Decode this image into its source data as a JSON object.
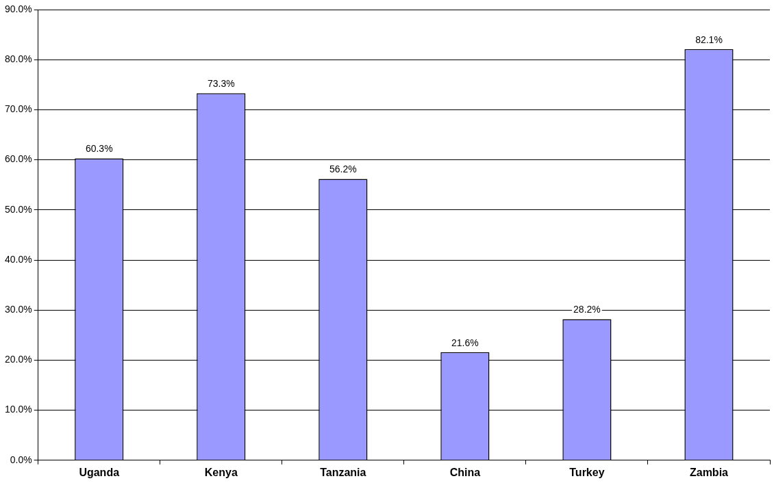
{
  "chart_data": {
    "type": "bar",
    "categories": [
      "Uganda",
      "Kenya",
      "Tanzania",
      "China",
      "Turkey",
      "Zambia"
    ],
    "values": [
      60.3,
      73.3,
      56.2,
      21.6,
      28.2,
      82.1
    ],
    "value_labels": [
      "60.3%",
      "73.3%",
      "56.2%",
      "21.6%",
      "28.2%",
      "82.1%"
    ],
    "color": "#9999ff",
    "ylim": [
      0,
      90
    ],
    "yticks": [
      {
        "value": 0,
        "label": "0.0%"
      },
      {
        "value": 10,
        "label": "10.0%"
      },
      {
        "value": 20,
        "label": "20.0%"
      },
      {
        "value": 30,
        "label": "30.0%"
      },
      {
        "value": 40,
        "label": "40.0%"
      },
      {
        "value": 50,
        "label": "50.0%"
      },
      {
        "value": 60,
        "label": "60.0%"
      },
      {
        "value": 70,
        "label": "70.0%"
      },
      {
        "value": 80,
        "label": "80.0%"
      },
      {
        "value": 90,
        "label": "90.0%"
      }
    ],
    "grid": "y",
    "legend": false
  }
}
